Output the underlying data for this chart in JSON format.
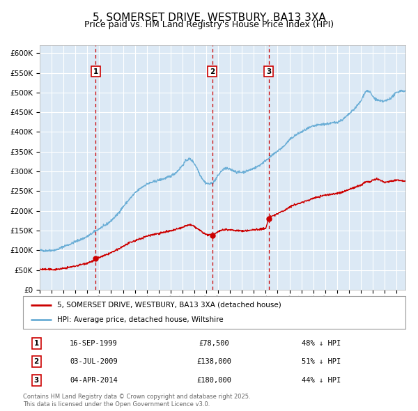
{
  "title": "5, SOMERSET DRIVE, WESTBURY, BA13 3XA",
  "subtitle": "Price paid vs. HM Land Registry's House Price Index (HPI)",
  "title_fontsize": 11,
  "subtitle_fontsize": 9,
  "background_color": "#dce9f5",
  "grid_color": "#ffffff",
  "hpi_color": "#6baed6",
  "price_color": "#cc0000",
  "vline_color": "#cc0000",
  "ylim": [
    0,
    620000
  ],
  "yticks": [
    0,
    50000,
    100000,
    150000,
    200000,
    250000,
    300000,
    350000,
    400000,
    450000,
    500000,
    550000,
    600000
  ],
  "sales": [
    {
      "label": "1",
      "date_str": "16-SEP-1999",
      "price": 78500,
      "pct": "48% ↓ HPI",
      "x_year": 1999.71
    },
    {
      "label": "2",
      "date_str": "03-JUL-2009",
      "price": 138000,
      "pct": "51% ↓ HPI",
      "x_year": 2009.5
    },
    {
      "label": "3",
      "date_str": "04-APR-2014",
      "price": 180000,
      "pct": "44% ↓ HPI",
      "x_year": 2014.25
    }
  ],
  "legend_entries": [
    {
      "label": "5, SOMERSET DRIVE, WESTBURY, BA13 3XA (detached house)",
      "color": "#cc0000"
    },
    {
      "label": "HPI: Average price, detached house, Wiltshire",
      "color": "#6baed6"
    }
  ],
  "footnote": "Contains HM Land Registry data © Crown copyright and database right 2025.\nThis data is licensed under the Open Government Licence v3.0.",
  "xlim_start": 1995.0,
  "xlim_end": 2025.75
}
